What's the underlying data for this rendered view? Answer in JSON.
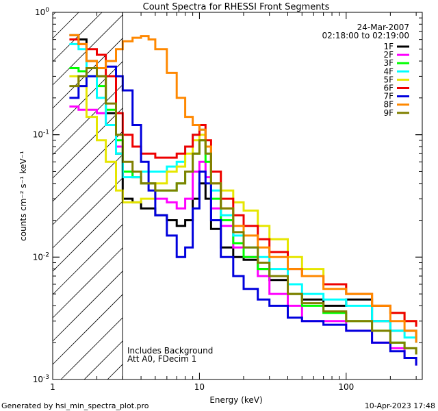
{
  "chart_data": {
    "type": "line",
    "scale": "log-log",
    "title": "Count Spectra for RHESSI Front Segments",
    "xlabel": "Energy (keV)",
    "ylabel": "counts cm⁻² s⁻¹ keV⁻¹",
    "xlim": [
      1.0,
      330
    ],
    "ylim": [
      0.001,
      1.0
    ],
    "x_ticks": [
      {
        "value": 1,
        "label": "1"
      },
      {
        "value": 10,
        "label": "10"
      },
      {
        "value": 100,
        "label": "100"
      }
    ],
    "y_ticks": [
      {
        "value": 1.0,
        "base": "10",
        "exp": "0"
      },
      {
        "value": 0.1,
        "base": "10",
        "exp": "-1"
      },
      {
        "value": 0.01,
        "base": "10",
        "exp": "-2"
      },
      {
        "value": 0.001,
        "base": "10",
        "exp": "-3"
      }
    ],
    "date": "24-Mar-2007",
    "time_range": "02:18:00 to 02:19:00",
    "hatched_region_max_energy_kev": 3.0,
    "notes": [
      "Includes Background",
      "Att A0, FDecim 1"
    ],
    "series": [
      {
        "name": "1F",
        "color": "#000000",
        "points": [
          [
            1.3,
            0.65
          ],
          [
            1.5,
            0.6
          ],
          [
            1.7,
            0.4
          ],
          [
            2.0,
            0.3
          ],
          [
            2.3,
            0.15
          ],
          [
            2.7,
            0.07
          ],
          [
            3.0,
            0.03
          ],
          [
            3.5,
            0.028
          ],
          [
            4.0,
            0.025
          ],
          [
            5.0,
            0.022
          ],
          [
            6.0,
            0.02
          ],
          [
            7.0,
            0.018
          ],
          [
            8.0,
            0.02
          ],
          [
            9.0,
            0.03
          ],
          [
            10.0,
            0.04
          ],
          [
            11.0,
            0.03
          ],
          [
            12.0,
            0.017
          ],
          [
            14.0,
            0.012
          ],
          [
            17.0,
            0.01
          ],
          [
            20.0,
            0.0095
          ],
          [
            25.0,
            0.008
          ],
          [
            30.0,
            0.0065
          ],
          [
            40.0,
            0.005
          ],
          [
            50.0,
            0.0045
          ],
          [
            70.0,
            0.004
          ],
          [
            100.0,
            0.0045
          ],
          [
            150.0,
            0.003
          ],
          [
            200.0,
            0.0025
          ],
          [
            250.0,
            0.0025
          ],
          [
            300.0,
            0.002
          ]
        ]
      },
      {
        "name": "2F",
        "color": "#ff00ff",
        "points": [
          [
            1.3,
            0.17
          ],
          [
            1.5,
            0.16
          ],
          [
            1.7,
            0.16
          ],
          [
            2.0,
            0.15
          ],
          [
            2.3,
            0.12
          ],
          [
            2.7,
            0.08
          ],
          [
            3.0,
            0.05
          ],
          [
            3.5,
            0.045
          ],
          [
            4.0,
            0.04
          ],
          [
            5.0,
            0.03
          ],
          [
            6.0,
            0.028
          ],
          [
            7.0,
            0.025
          ],
          [
            8.0,
            0.03
          ],
          [
            9.0,
            0.05
          ],
          [
            10.0,
            0.06
          ],
          [
            11.0,
            0.045
          ],
          [
            12.0,
            0.025
          ],
          [
            14.0,
            0.018
          ],
          [
            17.0,
            0.012
          ],
          [
            20.0,
            0.01
          ],
          [
            25.0,
            0.007
          ],
          [
            30.0,
            0.005
          ],
          [
            40.0,
            0.004
          ],
          [
            50.0,
            0.003
          ],
          [
            70.0,
            0.003
          ],
          [
            100.0,
            0.0025
          ],
          [
            150.0,
            0.002
          ],
          [
            200.0,
            0.0018
          ],
          [
            250.0,
            0.0015
          ],
          [
            300.0,
            0.0013
          ]
        ]
      },
      {
        "name": "3F",
        "color": "#00ff00",
        "points": [
          [
            1.3,
            0.35
          ],
          [
            1.5,
            0.33
          ],
          [
            1.7,
            0.3
          ],
          [
            2.0,
            0.25
          ],
          [
            2.3,
            0.16
          ],
          [
            2.7,
            0.09
          ],
          [
            3.0,
            0.05
          ],
          [
            3.5,
            0.045
          ],
          [
            4.0,
            0.04
          ],
          [
            5.0,
            0.035
          ],
          [
            6.0,
            0.035
          ],
          [
            7.0,
            0.04
          ],
          [
            8.0,
            0.05
          ],
          [
            9.0,
            0.07
          ],
          [
            10.0,
            0.09
          ],
          [
            11.0,
            0.06
          ],
          [
            12.0,
            0.03
          ],
          [
            14.0,
            0.02
          ],
          [
            17.0,
            0.013
          ],
          [
            20.0,
            0.01
          ],
          [
            25.0,
            0.008
          ],
          [
            30.0,
            0.007
          ],
          [
            40.0,
            0.005
          ],
          [
            50.0,
            0.004
          ],
          [
            70.0,
            0.0035
          ],
          [
            100.0,
            0.003
          ],
          [
            150.0,
            0.0025
          ],
          [
            200.0,
            0.002
          ],
          [
            250.0,
            0.0018
          ],
          [
            300.0,
            0.0016
          ]
        ]
      },
      {
        "name": "4F",
        "color": "#00ffff",
        "points": [
          [
            1.3,
            0.55
          ],
          [
            1.5,
            0.5
          ],
          [
            1.7,
            0.3
          ],
          [
            2.0,
            0.2
          ],
          [
            2.3,
            0.12
          ],
          [
            2.7,
            0.07
          ],
          [
            3.0,
            0.045
          ],
          [
            3.5,
            0.045
          ],
          [
            4.0,
            0.05
          ],
          [
            5.0,
            0.05
          ],
          [
            6.0,
            0.055
          ],
          [
            7.0,
            0.06
          ],
          [
            8.0,
            0.08
          ],
          [
            9.0,
            0.1
          ],
          [
            10.0,
            0.11
          ],
          [
            11.0,
            0.07
          ],
          [
            12.0,
            0.035
          ],
          [
            14.0,
            0.022
          ],
          [
            17.0,
            0.015
          ],
          [
            20.0,
            0.012
          ],
          [
            25.0,
            0.01
          ],
          [
            30.0,
            0.008
          ],
          [
            40.0,
            0.006
          ],
          [
            50.0,
            0.005
          ],
          [
            70.0,
            0.0045
          ],
          [
            100.0,
            0.004
          ],
          [
            150.0,
            0.003
          ],
          [
            200.0,
            0.0025
          ],
          [
            250.0,
            0.0022
          ],
          [
            300.0,
            0.002
          ]
        ]
      },
      {
        "name": "5F",
        "color": "#e6e600",
        "points": [
          [
            1.3,
            0.3
          ],
          [
            1.5,
            0.25
          ],
          [
            1.7,
            0.14
          ],
          [
            2.0,
            0.09
          ],
          [
            2.3,
            0.06
          ],
          [
            2.7,
            0.035
          ],
          [
            3.0,
            0.028
          ],
          [
            3.5,
            0.028
          ],
          [
            4.0,
            0.03
          ],
          [
            5.0,
            0.04
          ],
          [
            6.0,
            0.05
          ],
          [
            7.0,
            0.055
          ],
          [
            8.0,
            0.07
          ],
          [
            9.0,
            0.09
          ],
          [
            10.0,
            0.1
          ],
          [
            11.0,
            0.08
          ],
          [
            12.0,
            0.05
          ],
          [
            14.0,
            0.035
          ],
          [
            17.0,
            0.028
          ],
          [
            20.0,
            0.024
          ],
          [
            25.0,
            0.018
          ],
          [
            30.0,
            0.014
          ],
          [
            40.0,
            0.01
          ],
          [
            50.0,
            0.008
          ],
          [
            70.0,
            0.006
          ],
          [
            100.0,
            0.005
          ],
          [
            150.0,
            0.004
          ],
          [
            200.0,
            0.0035
          ],
          [
            250.0,
            0.003
          ],
          [
            300.0,
            0.0028
          ]
        ]
      },
      {
        "name": "6F",
        "color": "#ee0000",
        "points": [
          [
            1.3,
            0.6
          ],
          [
            1.5,
            0.55
          ],
          [
            1.7,
            0.5
          ],
          [
            2.0,
            0.45
          ],
          [
            2.3,
            0.3
          ],
          [
            2.7,
            0.15
          ],
          [
            3.0,
            0.1
          ],
          [
            3.5,
            0.08
          ],
          [
            4.0,
            0.07
          ],
          [
            5.0,
            0.065
          ],
          [
            6.0,
            0.065
          ],
          [
            7.0,
            0.07
          ],
          [
            8.0,
            0.08
          ],
          [
            9.0,
            0.1
          ],
          [
            10.0,
            0.12
          ],
          [
            11.0,
            0.09
          ],
          [
            12.0,
            0.05
          ],
          [
            14.0,
            0.03
          ],
          [
            17.0,
            0.022
          ],
          [
            20.0,
            0.018
          ],
          [
            25.0,
            0.014
          ],
          [
            30.0,
            0.011
          ],
          [
            40.0,
            0.008
          ],
          [
            50.0,
            0.007
          ],
          [
            70.0,
            0.006
          ],
          [
            100.0,
            0.005
          ],
          [
            150.0,
            0.004
          ],
          [
            200.0,
            0.0035
          ],
          [
            250.0,
            0.003
          ],
          [
            300.0,
            0.0027
          ]
        ]
      },
      {
        "name": "7F",
        "color": "#0000dd",
        "points": [
          [
            1.3,
            0.2
          ],
          [
            1.5,
            0.25
          ],
          [
            1.7,
            0.3
          ],
          [
            2.0,
            0.35
          ],
          [
            2.3,
            0.36
          ],
          [
            2.7,
            0.3
          ],
          [
            3.0,
            0.23
          ],
          [
            3.5,
            0.12
          ],
          [
            4.0,
            0.06
          ],
          [
            4.5,
            0.035
          ],
          [
            5.0,
            0.022
          ],
          [
            6.0,
            0.015
          ],
          [
            7.0,
            0.01
          ],
          [
            8.0,
            0.012
          ],
          [
            9.0,
            0.025
          ],
          [
            10.0,
            0.05
          ],
          [
            11.0,
            0.04
          ],
          [
            12.0,
            0.02
          ],
          [
            14.0,
            0.01
          ],
          [
            17.0,
            0.007
          ],
          [
            20.0,
            0.0055
          ],
          [
            25.0,
            0.0045
          ],
          [
            30.0,
            0.004
          ],
          [
            40.0,
            0.0032
          ],
          [
            50.0,
            0.003
          ],
          [
            70.0,
            0.0028
          ],
          [
            100.0,
            0.0025
          ],
          [
            150.0,
            0.002
          ],
          [
            200.0,
            0.0017
          ],
          [
            250.0,
            0.0015
          ],
          [
            300.0,
            0.0013
          ]
        ]
      },
      {
        "name": "8F",
        "color": "#ff8800",
        "points": [
          [
            1.3,
            0.65
          ],
          [
            1.5,
            0.55
          ],
          [
            1.7,
            0.4
          ],
          [
            2.0,
            0.35
          ],
          [
            2.3,
            0.4
          ],
          [
            2.7,
            0.5
          ],
          [
            3.0,
            0.58
          ],
          [
            3.5,
            0.62
          ],
          [
            4.0,
            0.64
          ],
          [
            4.5,
            0.6
          ],
          [
            5.0,
            0.5
          ],
          [
            6.0,
            0.32
          ],
          [
            7.0,
            0.2
          ],
          [
            8.0,
            0.14
          ],
          [
            9.0,
            0.12
          ],
          [
            10.0,
            0.11
          ],
          [
            11.0,
            0.08
          ],
          [
            12.0,
            0.04
          ],
          [
            14.0,
            0.025
          ],
          [
            17.0,
            0.018
          ],
          [
            20.0,
            0.015
          ],
          [
            25.0,
            0.012
          ],
          [
            30.0,
            0.01
          ],
          [
            40.0,
            0.008
          ],
          [
            50.0,
            0.007
          ],
          [
            70.0,
            0.0055
          ],
          [
            100.0,
            0.005
          ],
          [
            150.0,
            0.004
          ],
          [
            200.0,
            0.003
          ],
          [
            250.0,
            0.0025
          ],
          [
            300.0,
            0.002
          ]
        ]
      },
      {
        "name": "9F",
        "color": "#808000",
        "points": [
          [
            1.3,
            0.25
          ],
          [
            1.5,
            0.3
          ],
          [
            1.7,
            0.35
          ],
          [
            2.0,
            0.3
          ],
          [
            2.3,
            0.18
          ],
          [
            2.7,
            0.1
          ],
          [
            3.0,
            0.06
          ],
          [
            3.5,
            0.05
          ],
          [
            4.0,
            0.04
          ],
          [
            5.0,
            0.035
          ],
          [
            6.0,
            0.035
          ],
          [
            7.0,
            0.04
          ],
          [
            8.0,
            0.05
          ],
          [
            9.0,
            0.07
          ],
          [
            10.0,
            0.09
          ],
          [
            11.0,
            0.07
          ],
          [
            12.0,
            0.04
          ],
          [
            14.0,
            0.025
          ],
          [
            17.0,
            0.016
          ],
          [
            20.0,
            0.012
          ],
          [
            25.0,
            0.009
          ],
          [
            30.0,
            0.007
          ],
          [
            40.0,
            0.005
          ],
          [
            50.0,
            0.0042
          ],
          [
            70.0,
            0.0036
          ],
          [
            100.0,
            0.003
          ],
          [
            150.0,
            0.0025
          ],
          [
            200.0,
            0.002
          ],
          [
            250.0,
            0.0018
          ],
          [
            300.0,
            0.0016
          ]
        ]
      }
    ]
  },
  "footer": {
    "generated_by": "Generated by hsi_min_spectra_plot.pro",
    "timestamp": "10-Apr-2023 17:48"
  }
}
